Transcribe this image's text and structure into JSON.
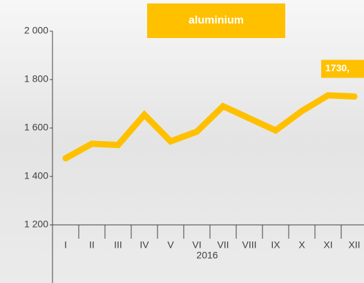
{
  "chart_data": {
    "type": "line",
    "title": "aluminium",
    "x_label": "2016",
    "categories": [
      "I",
      "II",
      "III",
      "IV",
      "V",
      "VI",
      "VII",
      "VIII",
      "IX",
      "X",
      "XI",
      "XII"
    ],
    "series": [
      {
        "name": "aluminium",
        "color": "#ffc000",
        "values": [
          1475,
          1535,
          1530,
          1655,
          1545,
          1585,
          1690,
          1640,
          1590,
          1670,
          1735,
          1730
        ],
        "value_labels": [
          null,
          null,
          null,
          null,
          null,
          null,
          null,
          null,
          null,
          null,
          null,
          "1730,"
        ]
      }
    ],
    "ylim": [
      1200,
      2000
    ],
    "yticks": [
      {
        "value": 1200,
        "label": "1 200"
      },
      {
        "value": 1400,
        "label": "1 400"
      },
      {
        "value": 1600,
        "label": "1 600"
      },
      {
        "value": 1800,
        "label": "1 800"
      },
      {
        "value": 2000,
        "label": "2 000"
      }
    ]
  }
}
